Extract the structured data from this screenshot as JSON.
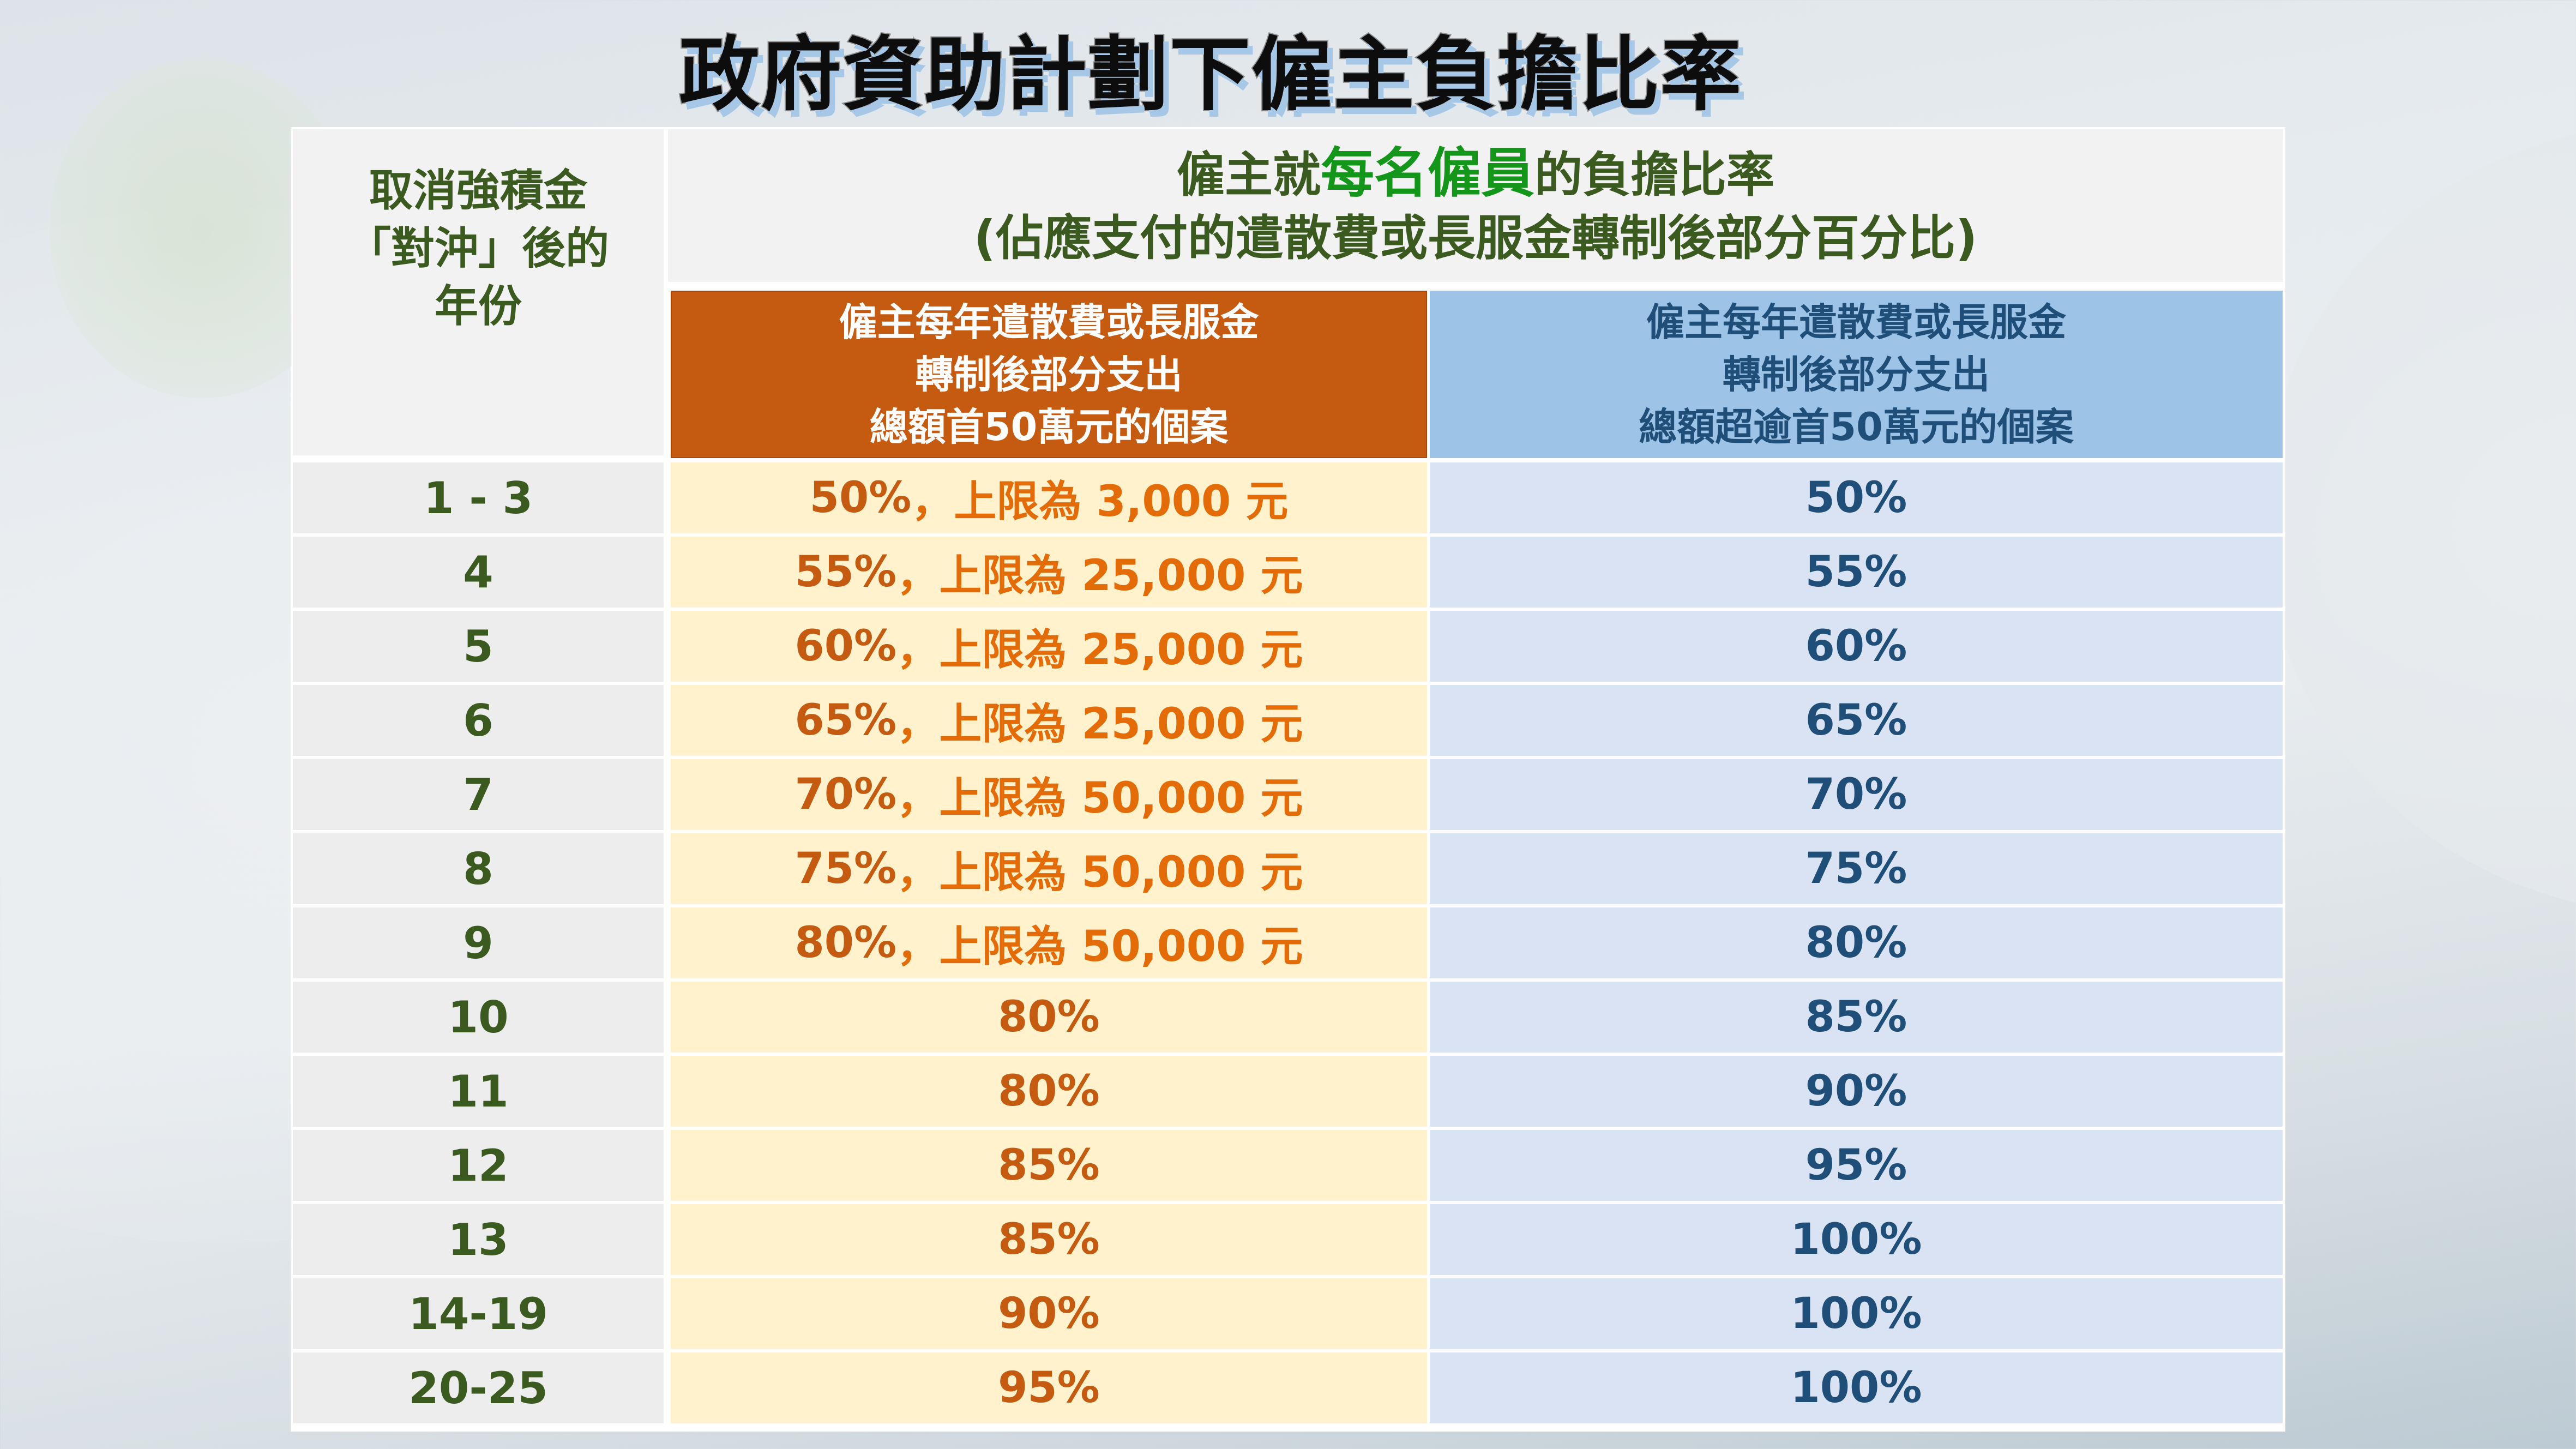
{
  "slide": {
    "title": "政府資助計劃下僱主負擔比率"
  },
  "table": {
    "header": {
      "year_col": [
        "取消強積金",
        "「對沖」後的",
        "年份"
      ],
      "main_line1_pre": "僱主就",
      "main_line1_highlight": "每名僱員",
      "main_line1_post": "的負擔比率",
      "main_line2": "(佔應支付的遣散費或長服金轉制後部分百分比)",
      "sub_a": [
        "僱主每年遣散費或長服金",
        "轉制後部分支出",
        "總額首50萬元的個案"
      ],
      "sub_b": [
        "僱主每年遣散費或長服金",
        "轉制後部分支出",
        "總額超逾首50萬元的個案"
      ]
    },
    "rows": [
      {
        "year": "1 - 3",
        "a_pct": "50%",
        "a_sep": "，",
        "a_cap": "上限為 3,000 元",
        "b": "50%"
      },
      {
        "year": "4",
        "a_pct": "55%",
        "a_sep": "，",
        "a_cap": "上限為 25,000 元",
        "b": "55%"
      },
      {
        "year": "5",
        "a_pct": "60%",
        "a_sep": "，",
        "a_cap": "上限為 25,000 元",
        "b": "60%"
      },
      {
        "year": "6",
        "a_pct": "65%",
        "a_sep": "，",
        "a_cap": "上限為 25,000 元",
        "b": "65%"
      },
      {
        "year": "7",
        "a_pct": "70%",
        "a_sep": "，",
        "a_cap": "上限為 50,000 元",
        "b": "70%"
      },
      {
        "year": "8",
        "a_pct": "75%",
        "a_sep": "，",
        "a_cap": "上限為 50,000 元",
        "b": "75%"
      },
      {
        "year": "9",
        "a_pct": "80%",
        "a_sep": "，",
        "a_cap": "上限為 50,000 元",
        "b": "80%"
      },
      {
        "year": "10",
        "a_pct": "80%",
        "a_sep": "",
        "a_cap": "",
        "b": "85%"
      },
      {
        "year": "11",
        "a_pct": "80%",
        "a_sep": "",
        "a_cap": "",
        "b": "90%"
      },
      {
        "year": "12",
        "a_pct": "85%",
        "a_sep": "",
        "a_cap": "",
        "b": "95%"
      },
      {
        "year": "13",
        "a_pct": "85%",
        "a_sep": "",
        "a_cap": "",
        "b": "100%"
      },
      {
        "year": "14-19",
        "a_pct": "90%",
        "a_sep": "",
        "a_cap": "",
        "b": "100%"
      },
      {
        "year": "20-25",
        "a_pct": "95%",
        "a_sep": "",
        "a_cap": "",
        "b": "100%"
      }
    ]
  },
  "colors": {
    "title_text": "#0d0d0d",
    "title_shadow": "#a7c7e6",
    "header_text_green": "#3b5a1f",
    "highlight_green": "#14961a",
    "sub_a_bg": "#c55a11",
    "sub_b_bg": "#9dc3e6",
    "sub_b_text": "#1f4e79",
    "col_a_bg": "#fff2cc",
    "col_a_pct": "#c55a11",
    "col_a_cap": "#e36c09",
    "col_b_bg": "#dae3f3",
    "col_year_bg": "#ededed"
  }
}
